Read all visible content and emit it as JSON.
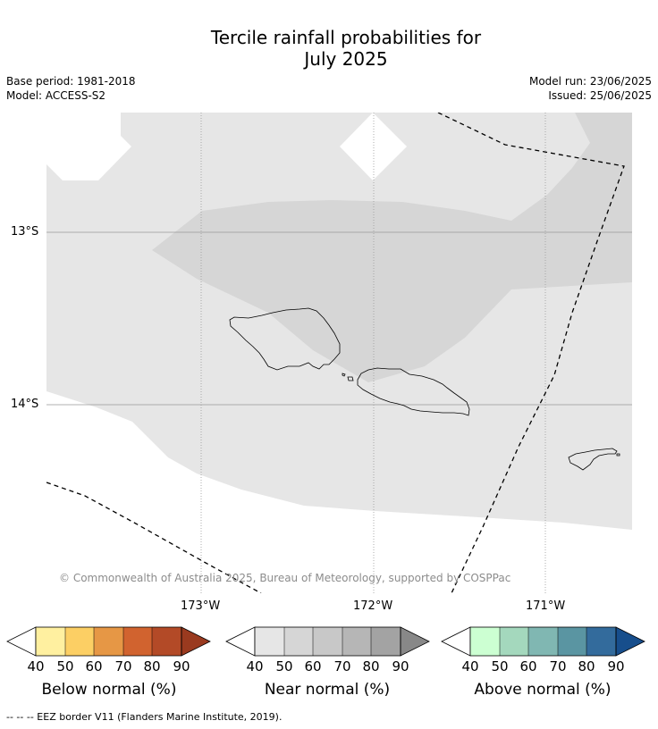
{
  "header": {
    "title_line1": "Tercile rainfall probabilities for",
    "title_line2": "July 2025",
    "base_period": "Base period: 1981-2018",
    "model": "Model: ACCESS-S2",
    "model_run": "Model run: 23/06/2025",
    "issued": "Issued: 25/06/2025"
  },
  "map": {
    "lat_labels": [
      "13°S",
      "14°S"
    ],
    "lon_labels": [
      "173°W",
      "172°W",
      "171°W"
    ],
    "credit": "© Commonwealth of Australia 2025, Bureau of Meteorology, supported by COSPPac",
    "colors": {
      "near_40": "#e6e6e6",
      "near_50": "#d6d6d6",
      "gridline": "#999999",
      "coastline": "#000000",
      "eez": "#000000"
    }
  },
  "colorbars": [
    {
      "title": "Below normal (%)",
      "ticks": [
        "40",
        "50",
        "60",
        "70",
        "80",
        "90"
      ],
      "colors": [
        "#fff0a0",
        "#fccf64",
        "#e69745",
        "#d1632f",
        "#b34a27",
        "#9a3a1f"
      ]
    },
    {
      "title": "Near normal (%)",
      "ticks": [
        "40",
        "50",
        "60",
        "70",
        "80",
        "90"
      ],
      "colors": [
        "#e6e6e6",
        "#d6d6d6",
        "#c8c8c8",
        "#b6b6b6",
        "#a3a3a3",
        "#888888"
      ]
    },
    {
      "title": "Above normal (%)",
      "ticks": [
        "40",
        "50",
        "60",
        "70",
        "80",
        "90"
      ],
      "colors": [
        "#ccffd2",
        "#a4d8bd",
        "#80b7b2",
        "#5a95a2",
        "#336b9c",
        "#174e8c"
      ]
    }
  ],
  "footer": {
    "eez_note": "--  --  -- EEZ border V11 (Flanders Marine Institute, 2019)."
  }
}
